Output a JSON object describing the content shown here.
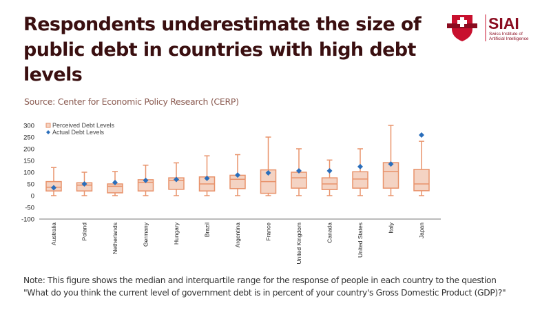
{
  "title": "Respondents underestimate the size of public debt in countries with high debt levels",
  "source": "Source: Center for Economic Policy Research (CERP)",
  "note_line1": "Note: This figure shows the median and interquartile range for the response of people in each country to the question",
  "note_line2": "\"What do you think the current level of government debt is in percent of your country's Gross Domestic Product (GDP)?\"",
  "logo": {
    "name": "SIAI",
    "subtitle1": "Swiss Institute of",
    "subtitle2": "Artificial Intelligence"
  },
  "colors": {
    "title": "#3a0f10",
    "box_stroke": "#e8926a",
    "box_fill": "#f4d3c3",
    "actual": "#2a6ebb",
    "logo": "#c8102e"
  },
  "chart_data": {
    "type": "box",
    "title": "",
    "xlabel": "",
    "ylabel": "",
    "ylim": [
      -100,
      300
    ],
    "yticks": [
      300,
      250,
      200,
      150,
      100,
      50,
      0,
      -50,
      -100
    ],
    "legend": [
      "Perceived Debt Levels",
      "Actual Debt Levels"
    ],
    "legend_position": "top-left",
    "categories": [
      "Australia",
      "Poland",
      "Netherlands",
      "Germany",
      "Hungary",
      "Brazil",
      "Argentina",
      "France",
      "United Kingdom",
      "Canada",
      "United States",
      "Italy",
      "Japan"
    ],
    "perceived": [
      {
        "min": 0,
        "q1": 20,
        "median": 36,
        "q3": 60,
        "max": 120
      },
      {
        "min": 0,
        "q1": 20,
        "median": 45,
        "q3": 55,
        "max": 100
      },
      {
        "min": 0,
        "q1": 12,
        "median": 40,
        "q3": 50,
        "max": 103
      },
      {
        "min": 0,
        "q1": 20,
        "median": 57,
        "q3": 68,
        "max": 130
      },
      {
        "min": 0,
        "q1": 27,
        "median": 65,
        "q3": 76,
        "max": 140
      },
      {
        "min": 0,
        "q1": 20,
        "median": 50,
        "q3": 80,
        "max": 170
      },
      {
        "min": 0,
        "q1": 30,
        "median": 70,
        "q3": 87,
        "max": 175
      },
      {
        "min": 0,
        "q1": 10,
        "median": 60,
        "q3": 110,
        "max": 250
      },
      {
        "min": 0,
        "q1": 32,
        "median": 76,
        "q3": 100,
        "max": 200
      },
      {
        "min": 0,
        "q1": 26,
        "median": 50,
        "q3": 76,
        "max": 152
      },
      {
        "min": 0,
        "q1": 32,
        "median": 71,
        "q3": 102,
        "max": 200
      },
      {
        "min": 0,
        "q1": 32,
        "median": 103,
        "q3": 141,
        "max": 300
      },
      {
        "min": 0,
        "q1": 21,
        "median": 50,
        "q3": 112,
        "max": 232
      }
    ],
    "actual": [
      34,
      50,
      56,
      65,
      69,
      74,
      88,
      97,
      106,
      106,
      124,
      135,
      259
    ]
  }
}
